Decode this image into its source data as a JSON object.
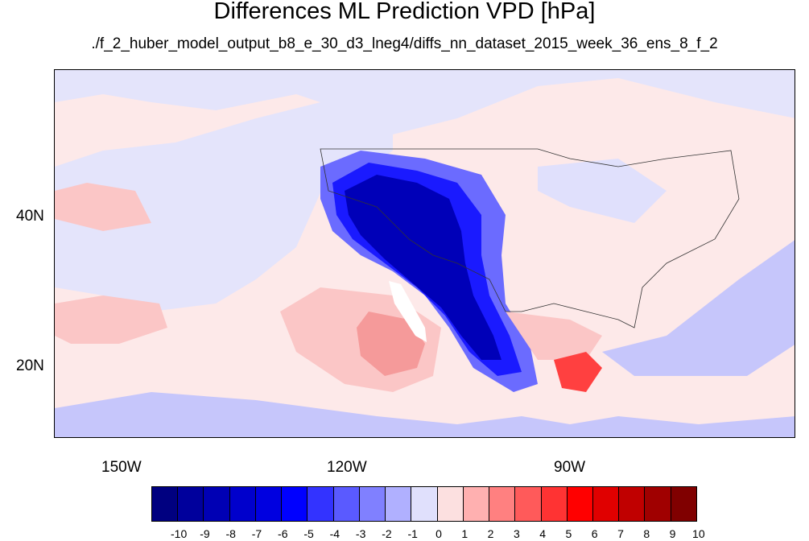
{
  "title": "Differences ML Prediction VPD [hPa]",
  "subtitle": "./f_2_huber_model_output_b8_e_30_d3_lneg4/diffs_nn_dataset_2015_week_36_ens_8_f_2",
  "map": {
    "lon_range": [
      -160,
      -60
    ],
    "lat_range": [
      10,
      59
    ],
    "lon_ticks": [
      "150W",
      "120W",
      "90W"
    ],
    "lat_ticks": [
      "40N",
      "20N"
    ]
  },
  "colorbar": {
    "labels": [
      "-10",
      "-9",
      "-8",
      "-7",
      "-6",
      "-5",
      "-4",
      "-3",
      "-2",
      "-1",
      "0",
      "1",
      "2",
      "3",
      "4",
      "5",
      "6",
      "7",
      "8",
      "9",
      "10"
    ],
    "colors": [
      "#000080",
      "#00009c",
      "#0000b4",
      "#0000cc",
      "#0000e0",
      "#0000ff",
      "#3333ff",
      "#5a5aff",
      "#8080ff",
      "#b0b0ff",
      "#e0e0fc",
      "#fce0e0",
      "#ffb0b0",
      "#ff8080",
      "#ff5a5a",
      "#ff3333",
      "#ff0000",
      "#e00000",
      "#c00000",
      "#a00000",
      "#800000"
    ]
  }
}
